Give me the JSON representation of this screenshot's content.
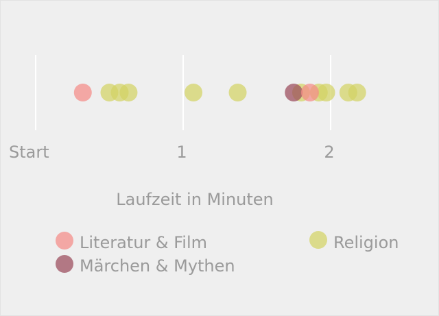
{
  "chart_data": {
    "type": "scatter",
    "xlabel": "Laufzeit in Minuten",
    "xticks": [
      {
        "value": 0,
        "label": "Start"
      },
      {
        "value": 1,
        "label": "1"
      },
      {
        "value": 2,
        "label": "2"
      }
    ],
    "xlim": [
      0,
      2.5
    ],
    "grid": "vertical lines at ticks",
    "series": [
      {
        "name": "Literatur & Film",
        "color": "#f48a86",
        "x": [
          0.32,
          1.86
        ]
      },
      {
        "name": "Religion",
        "color": "#d2d264",
        "x": [
          0.5,
          0.57,
          0.63,
          1.07,
          1.37,
          1.8,
          1.92,
          1.97,
          2.12,
          2.18
        ]
      },
      {
        "name": "Märchen & Mythen",
        "color": "#9a4a5a",
        "x": [
          1.75
        ]
      }
    ],
    "legend": {
      "placement": "bottom",
      "entries": [
        {
          "label": "Literatur & Film",
          "color": "#f48a86"
        },
        {
          "label": "Märchen & Mythen",
          "color": "#9a4a5a"
        },
        {
          "label": "Religion",
          "color": "#d2d264"
        }
      ]
    }
  }
}
